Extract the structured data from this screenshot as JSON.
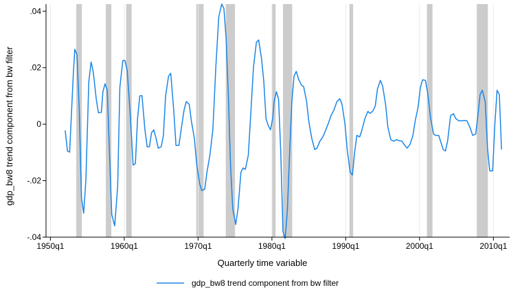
{
  "chart_data": {
    "type": "line",
    "xlabel": "Quarterly time variable",
    "ylabel": "gdp_bw8 trend component from bw filter",
    "xlim": [
      1949.4,
      2012.2
    ],
    "ylim": [
      -0.04,
      0.0425
    ],
    "grid": true,
    "legend_position": "bottom",
    "x_ticks": [
      {
        "value": 1950.0,
        "label": "1950q1"
      },
      {
        "value": 1960.0,
        "label": "1960q1"
      },
      {
        "value": 1970.0,
        "label": "1970q1"
      },
      {
        "value": 1980.0,
        "label": "1980q1"
      },
      {
        "value": 1990.0,
        "label": "1990q1"
      },
      {
        "value": 2000.0,
        "label": "2000q1"
      },
      {
        "value": 2010.0,
        "label": "2010q1"
      }
    ],
    "y_ticks": [
      {
        "value": -0.04,
        "label": "-.04"
      },
      {
        "value": -0.02,
        "label": "-.02"
      },
      {
        "value": 0,
        "label": "0"
      },
      {
        "value": 0.02,
        "label": ".02"
      },
      {
        "value": 0.04,
        "label": ".04"
      }
    ],
    "recessions": [
      [
        1953.5,
        1954.25
      ],
      [
        1957.5,
        1958.25
      ],
      [
        1960.25,
        1961.0
      ],
      [
        1969.75,
        1970.75
      ],
      [
        1973.75,
        1975.0
      ],
      [
        1980.0,
        1980.5
      ],
      [
        1981.5,
        1982.75
      ],
      [
        1990.5,
        1991.0
      ],
      [
        2001.0,
        2001.75
      ],
      [
        2007.75,
        2009.25
      ]
    ],
    "series": [
      {
        "name": "gdp_bw8 trend component from bw filter",
        "color": "#1a85e6",
        "x": [
          1952.0,
          1952.3,
          1952.6,
          1953.1,
          1953.3,
          1953.6,
          1953.9,
          1954.2,
          1954.5,
          1954.8,
          1955.2,
          1955.5,
          1955.8,
          1956.2,
          1956.5,
          1956.9,
          1957.1,
          1957.4,
          1957.7,
          1958.0,
          1958.3,
          1958.7,
          1959.1,
          1959.4,
          1959.8,
          1960.1,
          1960.4,
          1960.8,
          1961.2,
          1961.5,
          1961.8,
          1962.1,
          1962.4,
          1962.8,
          1963.1,
          1963.4,
          1963.7,
          1964.0,
          1964.3,
          1964.6,
          1965.0,
          1965.3,
          1965.6,
          1966.0,
          1966.3,
          1966.7,
          1967.0,
          1967.4,
          1967.7,
          1968.1,
          1968.4,
          1968.8,
          1969.1,
          1969.5,
          1969.8,
          1970.2,
          1970.5,
          1970.9,
          1971.2,
          1971.6,
          1972.0,
          1972.4,
          1972.8,
          1973.2,
          1973.5,
          1973.8,
          1974.1,
          1974.4,
          1974.7,
          1975.1,
          1975.4,
          1975.8,
          1976.1,
          1976.4,
          1976.8,
          1977.1,
          1977.5,
          1977.9,
          1978.2,
          1978.6,
          1978.9,
          1979.2,
          1979.5,
          1979.8,
          1980.1,
          1980.3,
          1980.6,
          1980.9,
          1981.2,
          1981.5,
          1981.8,
          1982.1,
          1982.4,
          1982.7,
          1983.0,
          1983.3,
          1983.6,
          1984.0,
          1984.3,
          1984.7,
          1985.0,
          1985.4,
          1985.8,
          1986.1,
          1986.5,
          1986.9,
          1987.3,
          1987.6,
          1988.0,
          1988.4,
          1988.8,
          1989.2,
          1989.5,
          1989.9,
          1990.2,
          1990.6,
          1990.9,
          1991.2,
          1991.5,
          1991.9,
          1992.2,
          1992.6,
          1993.0,
          1993.3,
          1993.7,
          1994.0,
          1994.3,
          1994.7,
          1995.0,
          1995.4,
          1995.7,
          1996.1,
          1996.5,
          1996.9,
          1997.2,
          1997.6,
          1998.0,
          1998.3,
          1998.7,
          1999.1,
          1999.4,
          1999.8,
          2000.1,
          2000.4,
          2000.8,
          2001.1,
          2001.5,
          2001.9,
          2002.2,
          2002.6,
          2002.9,
          2003.2,
          2003.5,
          2003.8,
          2004.2,
          2004.6,
          2004.9,
          2005.3,
          2005.7,
          2006.1,
          2006.4,
          2006.8,
          2007.2,
          2007.6,
          2007.9,
          2008.2,
          2008.5,
          2008.9,
          2009.2,
          2009.5,
          2009.9,
          2010.2,
          2010.5,
          2010.8,
          2011.1
        ],
        "y": [
          -0.0022,
          -0.0095,
          -0.0099,
          0.018,
          0.0265,
          0.0246,
          0.005,
          -0.026,
          -0.0315,
          -0.02,
          0.015,
          0.022,
          0.0185,
          0.009,
          0.004,
          0.0042,
          0.0115,
          0.0143,
          0.012,
          -0.01,
          -0.032,
          -0.036,
          -0.022,
          0.013,
          0.0225,
          0.0225,
          0.019,
          0.004,
          -0.0145,
          -0.014,
          0.002,
          0.01,
          0.0101,
          -0.002,
          -0.008,
          -0.008,
          -0.003,
          -0.002,
          -0.005,
          -0.0085,
          -0.008,
          -0.004,
          0.01,
          0.017,
          0.018,
          0.005,
          -0.0075,
          -0.0075,
          -0.002,
          0.005,
          0.008,
          0.007,
          0.001,
          -0.005,
          -0.014,
          -0.021,
          -0.0235,
          -0.023,
          -0.017,
          -0.011,
          -0.002,
          0.02,
          0.038,
          0.0425,
          0.041,
          0.03,
          0.01,
          -0.015,
          -0.03,
          -0.0355,
          -0.03,
          -0.017,
          -0.0155,
          -0.016,
          -0.011,
          0.002,
          0.02,
          0.029,
          0.0298,
          0.023,
          0.015,
          0.002,
          -0.0005,
          -0.002,
          0.002,
          0.008,
          0.0115,
          0.0088,
          -0.01,
          -0.038,
          -0.0405,
          -0.03,
          -0.01,
          0.008,
          0.017,
          0.0187,
          0.016,
          0.0138,
          0.0133,
          0.008,
          0.001,
          -0.005,
          -0.009,
          -0.0085,
          -0.006,
          -0.0045,
          -0.002,
          0.0,
          0.003,
          0.005,
          0.008,
          0.009,
          0.007,
          0.0,
          -0.009,
          -0.017,
          -0.018,
          -0.01,
          -0.004,
          -0.0045,
          -0.002,
          0.002,
          0.0045,
          0.0038,
          0.0048,
          0.0065,
          0.0125,
          0.0155,
          0.0135,
          0.007,
          -0.001,
          -0.0055,
          -0.006,
          -0.0055,
          -0.0058,
          -0.006,
          -0.0075,
          -0.0085,
          -0.0072,
          -0.004,
          0.001,
          0.006,
          0.0128,
          0.0157,
          0.0155,
          0.011,
          0.002,
          -0.0035,
          -0.004,
          -0.004,
          -0.0065,
          -0.009,
          -0.0095,
          -0.006,
          0.003,
          0.0037,
          0.002,
          0.0012,
          0.0012,
          0.0013,
          0.0012,
          -0.001,
          -0.004,
          -0.0035,
          0.003,
          0.0105,
          0.012,
          0.008,
          -0.0085,
          -0.0165,
          -0.0165,
          0.0,
          0.012,
          0.0105,
          -0.009
        ]
      }
    ]
  },
  "legend": {
    "label": "gdp_bw8 trend component from bw filter"
  }
}
